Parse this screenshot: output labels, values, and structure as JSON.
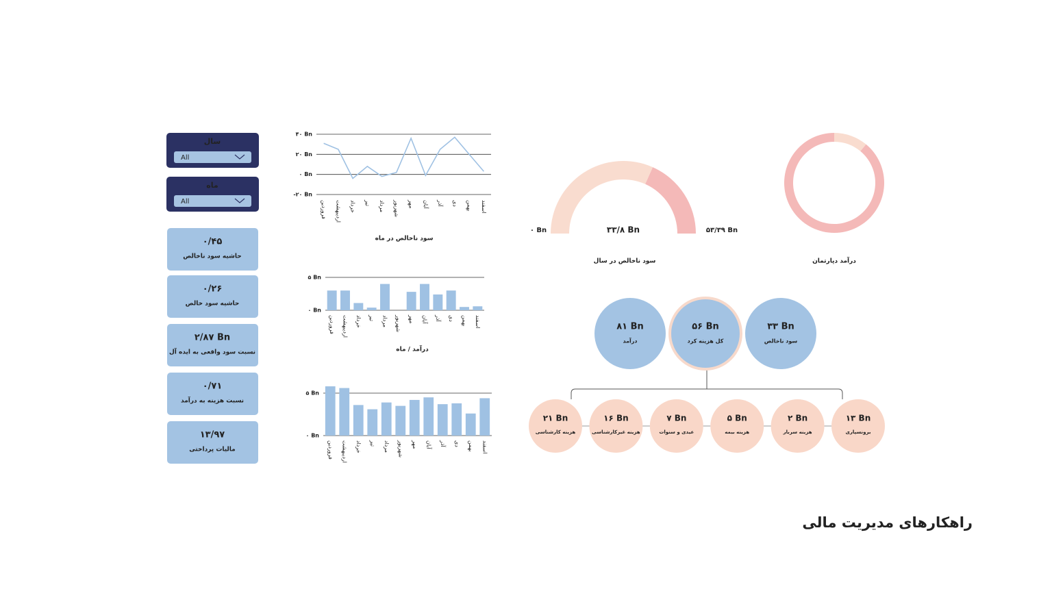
{
  "filters": [
    {
      "title": "سال",
      "value": "All"
    },
    {
      "title": "ماه",
      "value": "All"
    }
  ],
  "kpis": [
    {
      "value": "۰/۴۵",
      "label": "حاشیه سود ناخالص"
    },
    {
      "value": "۰/۲۶",
      "label": "حاشیه سود خالص"
    },
    {
      "value": "۲/۸۷ Bn",
      "label": "نسبت سود واقعی به ایده آل"
    },
    {
      "value": "۰/۷۱",
      "label": "نسبت هزینه به درآمد"
    },
    {
      "value": "۱۳/۹۷",
      "label": "مالیات پرداختی"
    }
  ],
  "chart_data": [
    {
      "type": "line",
      "title": "سود ناخالص در ماه",
      "color": "#9fc1e3",
      "categories": [
        "فروردین",
        "اردیبهشت",
        "خرداد",
        "تیر",
        "مرداد",
        "شهریور",
        "مهر",
        "آبان",
        "آذر",
        "دی",
        "بهمن",
        "اسفند"
      ],
      "values": [
        31,
        25,
        -4,
        8,
        -2,
        2,
        36,
        -1,
        25,
        37,
        20,
        3
      ],
      "ylim": [
        -20,
        40
      ],
      "yticks": [
        {
          "value": 40,
          "label": "۴۰ Bn"
        },
        {
          "value": 20,
          "label": "۲۰ Bn"
        },
        {
          "value": 0,
          "label": "۰ Bn"
        },
        {
          "value": -20,
          "label": "-۲۰ Bn"
        }
      ],
      "grid": true
    },
    {
      "type": "bar",
      "title": "درآمد / ماه",
      "color": "#9fc1e3",
      "categories": [
        "فروردین",
        "اردیبهشت",
        "خرداد",
        "تیر",
        "مرداد",
        "شهریور",
        "مهر",
        "آبان",
        "آذر",
        "دی",
        "بهمن",
        "اسفند"
      ],
      "values": [
        3,
        3,
        1.1,
        0.4,
        4,
        0,
        2.8,
        4,
        2.4,
        3,
        0.5,
        0.6
      ],
      "ylim": [
        0,
        5
      ],
      "yticks": [
        {
          "value": 5,
          "label": "۵ Bn"
        },
        {
          "value": 0,
          "label": "۰ Bn"
        }
      ],
      "grid": true
    },
    {
      "type": "bar",
      "color": "#9fc1e3",
      "categories": [
        "فروردین",
        "اردیبهشت",
        "خرداد",
        "تیر",
        "مرداد",
        "شهریور",
        "مهر",
        "آبان",
        "آذر",
        "دی",
        "بهمن",
        "اسفند"
      ],
      "values": [
        5.8,
        5.6,
        3.6,
        3.1,
        3.9,
        3.5,
        4.2,
        4.5,
        3.7,
        3.8,
        2.6,
        4.4
      ],
      "ylim": [
        0,
        6
      ],
      "yticks": [
        {
          "value": 5,
          "label": "۵ Bn"
        },
        {
          "value": 0,
          "label": "۰ Bn"
        }
      ],
      "grid": true
    },
    {
      "type": "gauge",
      "title": "سود ناخالص در سال",
      "value": 33.8,
      "value_label": "۳۳/۸ Bn",
      "min": 0,
      "min_label": "۰ Bn",
      "max": 53.39,
      "max_label": "۵۳/۳۹ Bn",
      "color": "#f9dccf",
      "track_color": "#f4b9b8"
    },
    {
      "type": "donut",
      "title": "درآمد دپارتمان",
      "values": [
        11,
        89
      ],
      "colors": [
        "#f9dccf",
        "#f4b9b8"
      ]
    }
  ],
  "tree": {
    "top": [
      {
        "value": "۸۱ Bn",
        "label": "درآمد"
      },
      {
        "value": "۵۶ Bn",
        "label": "کل هزینه کرد"
      },
      {
        "value": "۳۳ Bn",
        "label": "سود ناخالص"
      }
    ],
    "children": [
      {
        "value": "۲۱ Bn",
        "label": "هزینه کارشناسی"
      },
      {
        "value": "۱۶ Bn",
        "label": "هزینه غیرکارشناسی"
      },
      {
        "value": "۷ Bn",
        "label": "عیدی و سنوات"
      },
      {
        "value": "۵ Bn",
        "label": "هزینه بیمه"
      },
      {
        "value": "۲ Bn",
        "label": "هزینه سربار"
      },
      {
        "value": "۱۳ Bn",
        "label": "برونسپاری"
      }
    ]
  },
  "footer": {
    "title": "راهکارهای مدیریت مالی"
  }
}
